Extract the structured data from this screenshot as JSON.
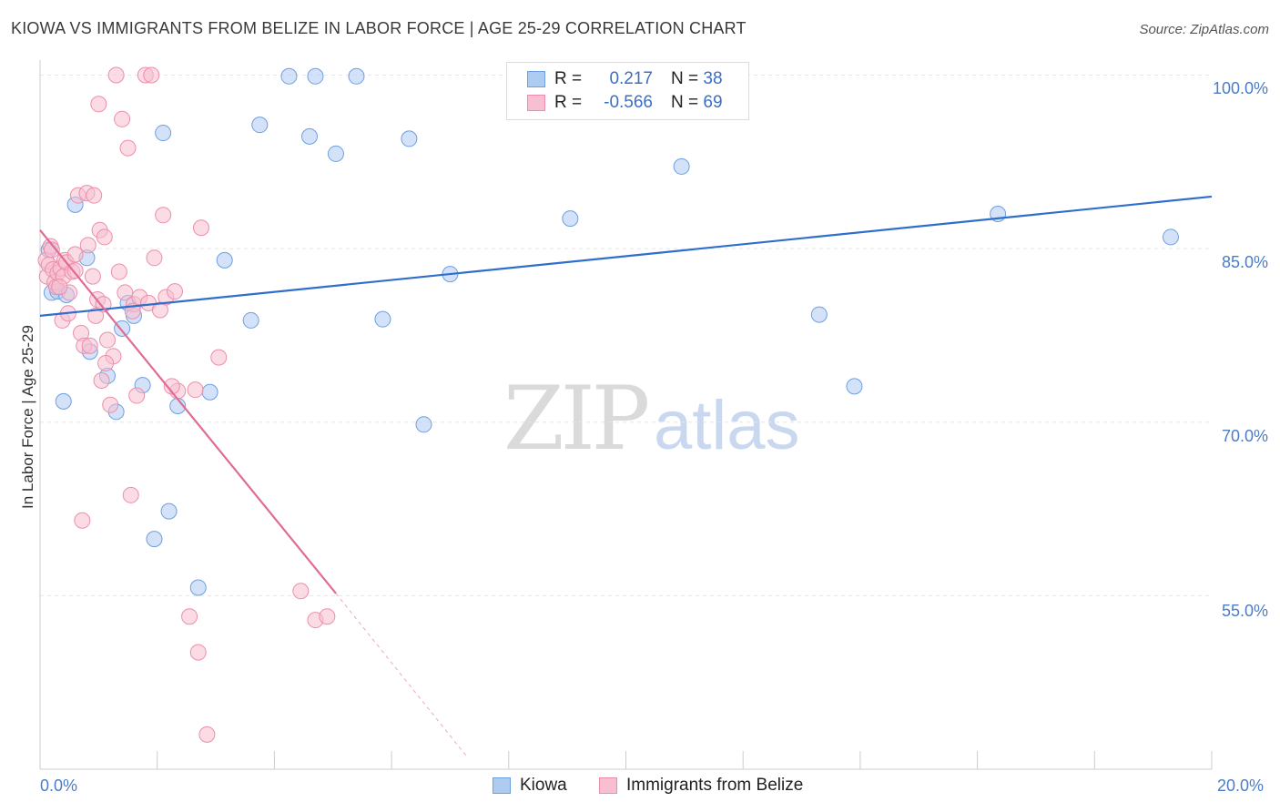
{
  "title": "KIOWA VS IMMIGRANTS FROM BELIZE IN LABOR FORCE | AGE 25-29 CORRELATION CHART",
  "source": "Source: ZipAtlas.com",
  "watermark": {
    "zip": "ZIP",
    "atlas": "atlas"
  },
  "legend": {
    "kiowa": {
      "r_label": "R =",
      "r_value": "0.217",
      "n_label": "N =",
      "n_value": "38"
    },
    "belize": {
      "r_label": "R =",
      "r_value": "-0.566",
      "n_label": "N =",
      "n_value": "69"
    }
  },
  "colors": {
    "kiowa_fill": "#aecbf2",
    "kiowa_stroke": "#6e9fe0",
    "kiowa_line": "#2f6fcc",
    "belize_fill": "#f7bfd0",
    "belize_stroke": "#ec8eab",
    "belize_line": "#e06c95",
    "axis_text": "#4a7cc7",
    "grid": "#e6e6e6"
  },
  "chart_data": {
    "type": "scatter",
    "title": "KIOWA VS IMMIGRANTS FROM BELIZE IN LABOR FORCE | AGE 25-29 CORRELATION CHART",
    "xlabel": "",
    "ylabel": "In Labor Force | Age 25-29",
    "xlim": [
      0,
      20
    ],
    "ylim": [
      40,
      101.3
    ],
    "x_tick_labels": [
      "0.0%",
      "20.0%"
    ],
    "y_ticks": [
      100,
      85,
      70,
      55
    ],
    "y_tick_labels": [
      "100.0%",
      "85.0%",
      "70.0%",
      "55.0%"
    ],
    "grid": true,
    "series": [
      {
        "name": "Kiowa",
        "R": 0.217,
        "N": 38,
        "trend": {
          "x": [
            0,
            20
          ],
          "y": [
            79.2,
            89.5
          ]
        },
        "points": [
          [
            0.15,
            84.9
          ],
          [
            0.2,
            81.2
          ],
          [
            0.3,
            81.3
          ],
          [
            0.45,
            81.0
          ],
          [
            0.4,
            71.8
          ],
          [
            0.6,
            88.8
          ],
          [
            0.8,
            84.2
          ],
          [
            0.85,
            76.1
          ],
          [
            1.15,
            74.0
          ],
          [
            1.3,
            70.9
          ],
          [
            1.4,
            78.1
          ],
          [
            1.5,
            80.3
          ],
          [
            1.6,
            79.2
          ],
          [
            1.75,
            73.2
          ],
          [
            1.95,
            59.9
          ],
          [
            2.1,
            95.0
          ],
          [
            2.2,
            62.3
          ],
          [
            2.35,
            71.4
          ],
          [
            2.7,
            55.7
          ],
          [
            2.9,
            72.6
          ],
          [
            3.15,
            84.0
          ],
          [
            3.6,
            78.8
          ],
          [
            3.75,
            95.7
          ],
          [
            4.25,
            99.9
          ],
          [
            4.6,
            94.7
          ],
          [
            4.7,
            99.9
          ],
          [
            5.05,
            93.2
          ],
          [
            5.4,
            99.9
          ],
          [
            5.85,
            78.9
          ],
          [
            6.3,
            94.5
          ],
          [
            6.55,
            69.8
          ],
          [
            7.0,
            82.8
          ],
          [
            9.05,
            87.6
          ],
          [
            10.95,
            92.1
          ],
          [
            13.3,
            79.3
          ],
          [
            13.9,
            73.1
          ],
          [
            16.35,
            88.0
          ],
          [
            19.3,
            86.0
          ]
        ]
      },
      {
        "name": "Immigrants from Belize",
        "R": -0.566,
        "N": 69,
        "trend": {
          "x": [
            0,
            5.05
          ],
          "y": [
            86.6,
            55.2
          ]
        },
        "trend_extension": {
          "x": [
            5.05,
            7.3
          ],
          "y": [
            55.2,
            41.0
          ]
        },
        "points": [
          [
            0.1,
            84.0
          ],
          [
            0.12,
            82.6
          ],
          [
            0.15,
            83.6
          ],
          [
            0.18,
            85.2
          ],
          [
            0.2,
            84.9
          ],
          [
            0.22,
            83.2
          ],
          [
            0.25,
            82.1
          ],
          [
            0.28,
            81.7
          ],
          [
            0.3,
            82.9
          ],
          [
            0.35,
            83.3
          ],
          [
            0.38,
            78.8
          ],
          [
            0.4,
            82.6
          ],
          [
            0.42,
            84.0
          ],
          [
            0.45,
            83.8
          ],
          [
            0.48,
            79.4
          ],
          [
            0.5,
            81.2
          ],
          [
            0.55,
            83.0
          ],
          [
            0.6,
            84.5
          ],
          [
            0.65,
            89.6
          ],
          [
            0.7,
            77.7
          ],
          [
            0.72,
            61.5
          ],
          [
            0.75,
            76.6
          ],
          [
            0.8,
            89.8
          ],
          [
            0.82,
            85.3
          ],
          [
            0.85,
            76.6
          ],
          [
            0.9,
            82.6
          ],
          [
            0.92,
            89.6
          ],
          [
            0.95,
            79.2
          ],
          [
            0.98,
            80.6
          ],
          [
            1.0,
            97.5
          ],
          [
            1.02,
            86.6
          ],
          [
            1.05,
            73.6
          ],
          [
            1.08,
            80.2
          ],
          [
            1.1,
            86.0
          ],
          [
            1.15,
            77.1
          ],
          [
            1.2,
            71.5
          ],
          [
            1.25,
            75.7
          ],
          [
            1.3,
            100.0
          ],
          [
            1.35,
            83.0
          ],
          [
            1.4,
            96.2
          ],
          [
            1.45,
            81.2
          ],
          [
            1.5,
            93.7
          ],
          [
            1.55,
            63.7
          ],
          [
            1.6,
            80.2
          ],
          [
            1.65,
            72.3
          ],
          [
            1.7,
            80.8
          ],
          [
            1.8,
            100.0
          ],
          [
            1.85,
            80.3
          ],
          [
            1.9,
            100.0
          ],
          [
            1.95,
            84.2
          ],
          [
            2.05,
            79.7
          ],
          [
            2.1,
            87.9
          ],
          [
            2.15,
            80.8
          ],
          [
            2.3,
            81.3
          ],
          [
            2.35,
            72.7
          ],
          [
            2.55,
            53.2
          ],
          [
            2.65,
            72.8
          ],
          [
            2.7,
            50.1
          ],
          [
            2.75,
            86.8
          ],
          [
            2.85,
            43.0
          ],
          [
            3.05,
            75.6
          ],
          [
            4.45,
            55.4
          ],
          [
            4.7,
            52.9
          ],
          [
            4.9,
            53.2
          ],
          [
            0.33,
            81.7
          ],
          [
            0.6,
            83.1
          ],
          [
            1.12,
            75.1
          ],
          [
            1.58,
            79.6
          ],
          [
            2.25,
            73.1
          ]
        ]
      }
    ]
  },
  "bottom_legend": {
    "kiowa": "Kiowa",
    "belize": "Immigrants from Belize"
  }
}
